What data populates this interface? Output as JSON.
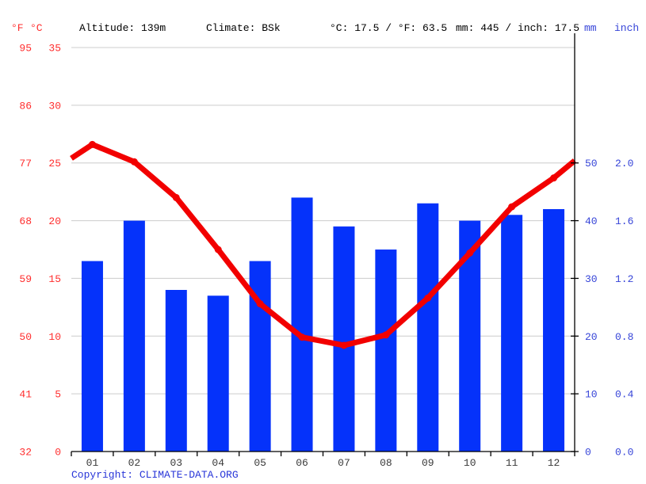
{
  "header": {
    "fahrenheit_label": "°F",
    "celsius_label": "°C",
    "altitude": "Altitude: 139m",
    "climate": "Climate: BSk",
    "avg_temperature": "°C: 17.5 / °F: 63.5",
    "annual_precipitation": "mm: 445 / inch: 17.5",
    "mm_label": "mm",
    "inch_label": "inch"
  },
  "footer": {
    "copyright_prefix": "Copyright: ",
    "copyright_link": "CLIMATE-DATA.ORG"
  },
  "colors": {
    "bar_blue": "#0532fa",
    "line_red": "#f20000",
    "red_text": "#ff2d2d",
    "blue_text": "#3644d8",
    "gridline": "#cccccc",
    "axis": "#000000",
    "month_label": "#3a3a3a"
  },
  "chart_data": {
    "type": "bar+line climate chart",
    "months": [
      "01",
      "02",
      "03",
      "04",
      "05",
      "06",
      "07",
      "08",
      "09",
      "10",
      "11",
      "12"
    ],
    "series": [
      {
        "name": "temperature_c",
        "type": "line",
        "values": [
          26.6,
          25.1,
          22.0,
          17.5,
          12.8,
          9.9,
          9.2,
          10.1,
          13.3,
          17.2,
          21.2,
          23.7
        ]
      },
      {
        "name": "precipitation_mm",
        "type": "bar",
        "values": [
          33,
          40,
          28,
          27,
          33,
          44,
          39,
          35,
          43,
          40,
          41,
          42
        ]
      }
    ],
    "line_edge_values": {
      "left": 25.4,
      "right": 25.2
    },
    "left_axis": {
      "fahrenheit_ticks": [
        "95",
        "86",
        "77",
        "68",
        "59",
        "50",
        "41",
        "32"
      ],
      "celsius_ticks": [
        "35",
        "30",
        "25",
        "20",
        "15",
        "10",
        "5",
        "0"
      ],
      "celsius_range": [
        0,
        35
      ]
    },
    "right_axis": {
      "mm_ticks": [
        "50",
        "40",
        "30",
        "20",
        "10",
        "0"
      ],
      "inch_ticks": [
        "2.0",
        "1.6",
        "1.2",
        "0.8",
        "0.4",
        "0.0"
      ],
      "mm_tick_positions": [
        50,
        40,
        30,
        20,
        10,
        0
      ],
      "mm_range": [
        0,
        70
      ]
    },
    "grid": "horizontal only",
    "legend": "none"
  }
}
